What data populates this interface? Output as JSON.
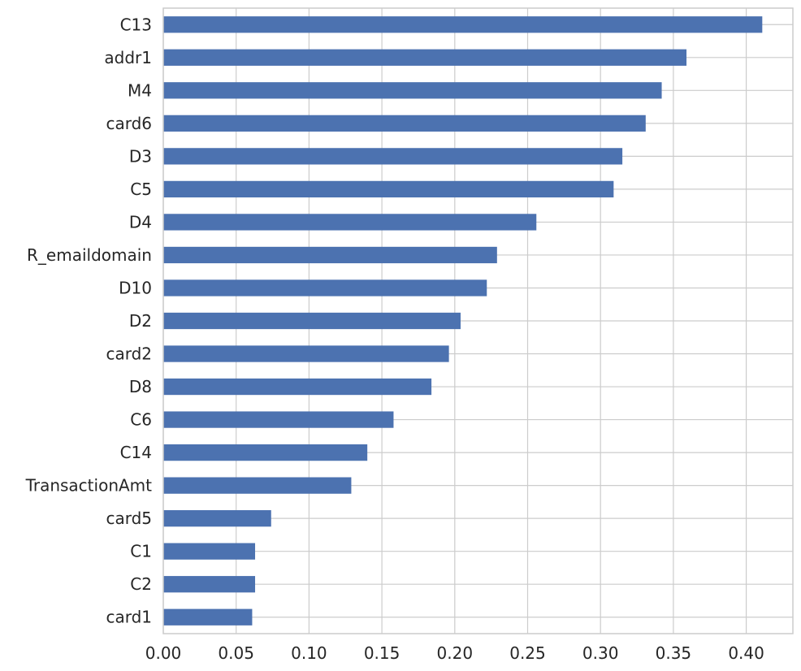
{
  "chart_data": {
    "type": "bar",
    "orientation": "horizontal",
    "title": "",
    "xlabel": "",
    "ylabel": "",
    "categories": [
      "C13",
      "addr1",
      "M4",
      "card6",
      "D3",
      "C5",
      "D4",
      "R_emaildomain",
      "D10",
      "D2",
      "card2",
      "D8",
      "C6",
      "C14",
      "TransactionAmt",
      "card5",
      "C1",
      "C2",
      "card1"
    ],
    "values": [
      0.411,
      0.359,
      0.342,
      0.331,
      0.315,
      0.309,
      0.256,
      0.229,
      0.222,
      0.204,
      0.196,
      0.184,
      0.158,
      0.14,
      0.129,
      0.074,
      0.063,
      0.063,
      0.061
    ],
    "xlim": [
      0,
      0.432
    ],
    "xticks": [
      "0.00",
      "0.05",
      "0.10",
      "0.15",
      "0.20",
      "0.25",
      "0.30",
      "0.35",
      "0.40"
    ],
    "grid": true,
    "bar_color": "#4c72b0",
    "grid_color": "#cccccc",
    "text_color": "#262626"
  }
}
